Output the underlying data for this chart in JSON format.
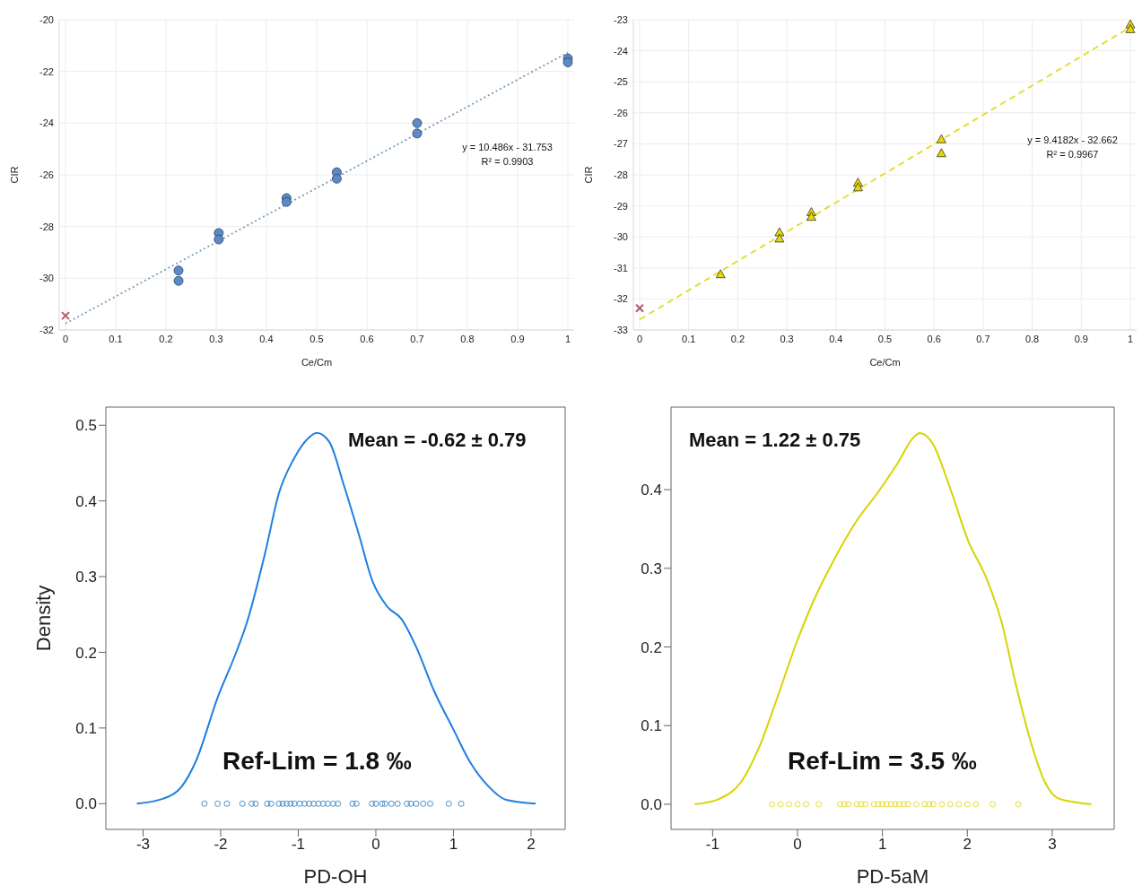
{
  "chart_data": [
    {
      "type": "scatter",
      "xlabel": "Ce/Cm",
      "ylabel": "CIR",
      "xlim": [
        0,
        1
      ],
      "xticks": [
        0,
        0.1,
        0.2,
        0.3,
        0.4,
        0.5,
        0.6,
        0.7,
        0.8,
        0.9,
        1
      ],
      "ylim": [
        -32,
        -20
      ],
      "yticks": [
        -32,
        -30,
        -28,
        -26,
        -24,
        -22,
        -20
      ],
      "grid": true,
      "annotations": [
        "y = 10.486x - 31.753",
        "R² = 0.9903"
      ],
      "series": [
        {
          "type": "line",
          "color": "#7a9cb8",
          "line_style": "dotted",
          "marker": "none",
          "x": [
            0,
            1
          ],
          "values": [
            -31.75,
            -21.27
          ]
        },
        {
          "type": "scatter",
          "color": "#5b8ac6",
          "marker": "circle",
          "x": [
            0.225,
            0.225,
            0.305,
            0.305,
            0.44,
            0.44,
            0.54,
            0.54,
            0.7,
            0.7,
            1,
            1
          ],
          "values": [
            -29.7,
            -30.1,
            -28.25,
            -28.5,
            -26.9,
            -27.05,
            -25.9,
            -26.15,
            -24.0,
            -24.4,
            -21.5,
            -21.65
          ]
        },
        {
          "type": "scatter",
          "color": "#b05a6a",
          "marker": "cross",
          "x": [
            0
          ],
          "values": [
            -31.45
          ]
        }
      ]
    },
    {
      "type": "scatter",
      "xlabel": "Ce/Cm",
      "ylabel": "CIR",
      "xlim": [
        0,
        1
      ],
      "xticks": [
        0,
        0.1,
        0.2,
        0.3,
        0.4,
        0.5,
        0.6,
        0.7,
        0.8,
        0.9,
        1
      ],
      "ylim": [
        -33,
        -23
      ],
      "yticks": [
        -33,
        -32,
        -31,
        -30,
        -29,
        -28,
        -27,
        -26,
        -25,
        -24,
        -23
      ],
      "grid": true,
      "annotations": [
        "y = 9.4182x - 32.662",
        "R² = 0.9967"
      ],
      "series": [
        {
          "type": "line",
          "color": "#e0dc20",
          "line_style": "dashed",
          "marker": "none",
          "x": [
            0,
            1
          ],
          "values": [
            -32.66,
            -23.24
          ]
        },
        {
          "type": "scatter",
          "color": "#e8d800",
          "marker": "triangle",
          "x": [
            0.165,
            0.285,
            0.285,
            0.35,
            0.35,
            0.445,
            0.445,
            0.615,
            0.615,
            1,
            1
          ],
          "values": [
            -31.2,
            -29.85,
            -30.05,
            -29.2,
            -29.35,
            -28.25,
            -28.4,
            -26.85,
            -27.3,
            -23.15,
            -23.3
          ]
        },
        {
          "type": "scatter",
          "color": "#b05a6a",
          "marker": "cross",
          "x": [
            0
          ],
          "values": [
            -32.3
          ]
        }
      ]
    },
    {
      "type": "line",
      "xlabel": "PD-OH",
      "ylabel": "Density",
      "xlim": [
        -3.48,
        2.44
      ],
      "xticks": [
        -3,
        -2,
        -1,
        0,
        1,
        2
      ],
      "ylim": [
        -0.034,
        0.524
      ],
      "yticks": [
        {
          "value": 0,
          "label": "0.0"
        },
        0.1,
        0.2,
        0.3,
        0.4,
        0.5
      ],
      "grid": false,
      "annotations": [
        "Mean = -0.62 ± 0.79",
        "Ref-Lim = 1.8 ‰"
      ],
      "series": [
        {
          "type": "line",
          "color": "#1e7fe0",
          "line_style": "solid",
          "marker": "none",
          "x": [
            -3.08,
            -2.73,
            -2.5,
            -2.32,
            -2.04,
            -1.8,
            -1.66,
            -1.43,
            -1.25,
            -1.06,
            -0.88,
            -0.76,
            -0.6,
            -0.41,
            -0.22,
            -0.04,
            0.15,
            0.33,
            0.52,
            0.75,
            0.99,
            1.22,
            1.45,
            1.68,
            2.06
          ],
          "values": [
            0,
            0.007,
            0.023,
            0.056,
            0.14,
            0.2,
            0.24,
            0.33,
            0.41,
            0.455,
            0.482,
            0.49,
            0.478,
            0.42,
            0.356,
            0.293,
            0.26,
            0.244,
            0.207,
            0.149,
            0.1,
            0.054,
            0.023,
            0.005,
            0
          ]
        },
        {
          "type": "scatter",
          "color": "#4a90c8",
          "marker": "circle",
          "x": [
            -2.21,
            -2.04,
            -1.92,
            -1.72,
            -1.6,
            -1.55,
            -1.4,
            -1.35,
            -1.25,
            -1.2,
            -1.15,
            -1.1,
            -1.05,
            -0.98,
            -0.92,
            -0.86,
            -0.8,
            -0.74,
            -0.68,
            -0.62,
            -0.55,
            -0.49,
            -0.3,
            -0.25,
            -0.05,
            0,
            0.08,
            0.12,
            0.2,
            0.28,
            0.4,
            0.45,
            0.52,
            0.61,
            0.7,
            0.94,
            1.1
          ],
          "values": [
            0,
            0,
            0,
            0,
            0,
            0,
            0,
            0,
            0,
            0,
            0,
            0,
            0,
            0,
            0,
            0,
            0,
            0,
            0,
            0,
            0,
            0,
            0,
            0,
            0,
            0,
            0,
            0,
            0,
            0,
            0,
            0,
            0,
            0,
            0,
            0,
            0
          ]
        }
      ]
    },
    {
      "type": "line",
      "xlabel": "PD-5aM",
      "xlim": [
        -1.49,
        3.73
      ],
      "xticks": [
        -1,
        0,
        1,
        2,
        3
      ],
      "ylim": [
        -0.032,
        0.505
      ],
      "yticks": [
        {
          "value": 0,
          "label": "0.0"
        },
        0.1,
        0.2,
        0.3,
        0.4
      ],
      "grid": false,
      "annotations": [
        "Mean = 1.22 ± 0.75",
        "Ref-Lim = 3.5 ‰"
      ],
      "series": [
        {
          "type": "line",
          "color": "#d8d400",
          "line_style": "solid",
          "marker": "none",
          "x": [
            -1.21,
            -0.92,
            -0.66,
            -0.45,
            -0.24,
            -0.01,
            0.19,
            0.44,
            0.7,
            0.95,
            1.17,
            1.38,
            1.44,
            1.59,
            1.8,
            2.01,
            2.23,
            2.4,
            2.57,
            2.74,
            2.91,
            3.08,
            3.46
          ],
          "values": [
            0,
            0.007,
            0.029,
            0.073,
            0.135,
            0.206,
            0.259,
            0.313,
            0.361,
            0.397,
            0.432,
            0.468,
            0.472,
            0.459,
            0.401,
            0.335,
            0.286,
            0.233,
            0.153,
            0.082,
            0.029,
            0.007,
            0
          ]
        },
        {
          "type": "scatter",
          "color": "#e8dc40",
          "marker": "circle",
          "x": [
            -0.3,
            -0.2,
            -0.1,
            0,
            0.1,
            0.25,
            0.5,
            0.55,
            0.6,
            0.7,
            0.75,
            0.8,
            0.9,
            0.95,
            1,
            1.05,
            1.1,
            1.15,
            1.2,
            1.25,
            1.3,
            1.4,
            1.5,
            1.55,
            1.6,
            1.7,
            1.8,
            1.9,
            2,
            2.1,
            2.3,
            2.6
          ],
          "values": [
            0,
            0,
            0,
            0,
            0,
            0,
            0,
            0,
            0,
            0,
            0,
            0,
            0,
            0,
            0,
            0,
            0,
            0,
            0,
            0,
            0,
            0,
            0,
            0,
            0,
            0,
            0,
            0,
            0,
            0,
            0,
            0
          ]
        }
      ]
    }
  ]
}
